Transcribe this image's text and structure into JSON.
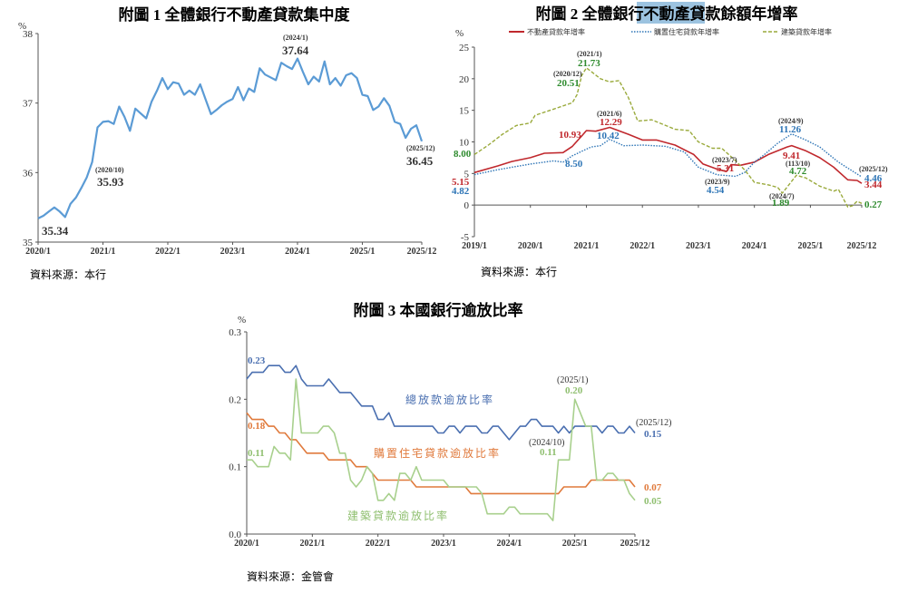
{
  "chart_data": [
    {
      "type": "line",
      "title": "附圖 1  全體銀行不動產貸款集中度",
      "unit": "%",
      "ylim": [
        35,
        38
      ],
      "yticks": [
        "35",
        "36",
        "37",
        "38"
      ],
      "xticks": [
        "2020/1",
        "2021/1",
        "2022/1",
        "2023/1",
        "2024/1",
        "2025/1",
        "2025/12"
      ],
      "source": "資料來源：本行",
      "series": [
        {
          "color": "#5b9bd5",
          "style": "solid",
          "x_start": "2020/1",
          "values": [
            35.34,
            35.38,
            35.44,
            35.5,
            35.44,
            35.36,
            35.55,
            35.64,
            35.78,
            35.93,
            36.15,
            36.65,
            36.73,
            36.74,
            36.7,
            36.95,
            36.8,
            36.6,
            36.92,
            36.85,
            36.78,
            37.02,
            37.18,
            37.36,
            37.2,
            37.3,
            37.28,
            37.12,
            37.18,
            37.12,
            37.27,
            37.05,
            36.84,
            36.9,
            36.97,
            37.02,
            37.06,
            37.23,
            37.04,
            37.21,
            37.16,
            37.5,
            37.41,
            37.37,
            37.33,
            37.58,
            37.53,
            37.49,
            37.64,
            37.45,
            37.27,
            37.38,
            37.31,
            37.6,
            37.27,
            37.36,
            37.25,
            37.4,
            37.43,
            37.36,
            37.12,
            37.1,
            36.9,
            36.95,
            37.07,
            36.96,
            36.73,
            36.7,
            36.5,
            36.63,
            36.68,
            36.45
          ]
        }
      ],
      "annotations": [
        {
          "value": "35.34"
        },
        {
          "date": "(2020/10)",
          "value": "35.93"
        },
        {
          "date": "(2024/1)",
          "value": "37.64"
        },
        {
          "date": "(2025/12)",
          "value": "36.45"
        }
      ]
    },
    {
      "type": "line",
      "title": "附圖 2  全體銀行不動產貸款餘額年增率",
      "unit": "%",
      "ylim": [
        -5,
        25
      ],
      "yticks": [
        "-5",
        "0",
        "5",
        "10",
        "15",
        "20",
        "25"
      ],
      "xticks": [
        "2019/1",
        "2020/1",
        "2021/1",
        "2022/1",
        "2023/1",
        "2024/1",
        "2025/1",
        "2025/12"
      ],
      "source": "資料來源：本行",
      "legend": "top",
      "series": [
        {
          "name": "不動產貸款年增率",
          "color": "#c0282d",
          "style": "solid",
          "points": [
            [
              "2019/1",
              5.15
            ],
            [
              "2019/6",
              6.2
            ],
            [
              "2019/9",
              6.9
            ],
            [
              "2020/1",
              7.5
            ],
            [
              "2020/4",
              8.2
            ],
            [
              "2020/8",
              8.3
            ],
            [
              "2020/10",
              9.3
            ],
            [
              "2020/12",
              10.93
            ],
            [
              "2021/1",
              11.8
            ],
            [
              "2021/3",
              11.7
            ],
            [
              "2021/6",
              12.29
            ],
            [
              "2021/10",
              11.2
            ],
            [
              "2022/1",
              10.3
            ],
            [
              "2022/4",
              10.3
            ],
            [
              "2022/8",
              9.5
            ],
            [
              "2022/12",
              8.0
            ],
            [
              "2023/2",
              6.5
            ],
            [
              "2023/5",
              5.7
            ],
            [
              "2023/7",
              5.31
            ],
            [
              "2023/8",
              6.4
            ],
            [
              "2023/10",
              6.3
            ],
            [
              "2024/1",
              6.8
            ],
            [
              "2024/4",
              8.0
            ],
            [
              "2024/8",
              9.2
            ],
            [
              "2024/9",
              9.41
            ],
            [
              "2024/12",
              8.6
            ],
            [
              "2025/3",
              7.5
            ],
            [
              "2025/6",
              6.0
            ],
            [
              "2025/9",
              4.0
            ],
            [
              "2025/11",
              3.9
            ],
            [
              "2025/12",
              3.44
            ]
          ]
        },
        {
          "name": "購置住宅貸款年增率",
          "color": "#2e75b6",
          "style": "dotted",
          "points": [
            [
              "2019/1",
              4.82
            ],
            [
              "2019/6",
              5.6
            ],
            [
              "2020/1",
              6.5
            ],
            [
              "2020/6",
              7.0
            ],
            [
              "2020/8",
              6.8
            ],
            [
              "2020/10",
              7.8
            ],
            [
              "2020/12",
              8.5
            ],
            [
              "2021/2",
              9.2
            ],
            [
              "2021/4",
              9.4
            ],
            [
              "2021/6",
              10.42
            ],
            [
              "2021/9",
              9.4
            ],
            [
              "2022/1",
              9.5
            ],
            [
              "2022/6",
              9.3
            ],
            [
              "2022/10",
              8.4
            ],
            [
              "2023/1",
              6.0
            ],
            [
              "2023/5",
              4.8
            ],
            [
              "2023/9",
              4.54
            ],
            [
              "2023/11",
              5.2
            ],
            [
              "2024/1",
              6.8
            ],
            [
              "2024/3",
              7.9
            ],
            [
              "2024/6",
              9.8
            ],
            [
              "2024/9",
              11.26
            ],
            [
              "2024/12",
              10.3
            ],
            [
              "2025/3",
              9.2
            ],
            [
              "2025/7",
              6.8
            ],
            [
              "2025/12",
              4.46
            ]
          ]
        },
        {
          "name": "建築貸款年增率",
          "color": "#9aaa3c",
          "style": "dashed",
          "points": [
            [
              "2019/1",
              8.0
            ],
            [
              "2019/4",
              9.5
            ],
            [
              "2019/7",
              11.2
            ],
            [
              "2019/10",
              12.6
            ],
            [
              "2020/1",
              13.0
            ],
            [
              "2020/2",
              14.2
            ],
            [
              "2020/6",
              15.2
            ],
            [
              "2020/10",
              16.2
            ],
            [
              "2020/11",
              17.5
            ],
            [
              "2020/12",
              20.51
            ],
            [
              "2021/1",
              21.73
            ],
            [
              "2021/4",
              20.0
            ],
            [
              "2021/6",
              19.5
            ],
            [
              "2021/8",
              19.7
            ],
            [
              "2021/10",
              17.0
            ],
            [
              "2021/12",
              13.3
            ],
            [
              "2022/3",
              13.5
            ],
            [
              "2022/8",
              12.0
            ],
            [
              "2022/11",
              11.8
            ],
            [
              "2023/1",
              10.0
            ],
            [
              "2023/4",
              9.0
            ],
            [
              "2023/6",
              9.0
            ],
            [
              "2023/9",
              7.0
            ],
            [
              "2023/11",
              5.5
            ],
            [
              "2024/1",
              3.6
            ],
            [
              "2024/4",
              3.2
            ],
            [
              "2024/6",
              2.8
            ],
            [
              "2024/7",
              1.89
            ],
            [
              "2024/10",
              4.72
            ],
            [
              "2024/12",
              4.3
            ],
            [
              "2025/3",
              3.0
            ],
            [
              "2025/6",
              2.2
            ],
            [
              "2025/7",
              2.5
            ],
            [
              "2025/9",
              -0.3
            ],
            [
              "2025/10",
              -0.1
            ],
            [
              "2025/11",
              0.6
            ],
            [
              "2025/12",
              0.27
            ]
          ]
        }
      ],
      "annotations": [
        {
          "value": "5.15",
          "color": "#c0282d"
        },
        {
          "value": "4.82",
          "color": "#2e75b6"
        },
        {
          "value": "8.00",
          "color": "#2e8b2e"
        },
        {
          "date": "(2020/12)",
          "value": "20.51",
          "color": "#2e8b2e"
        },
        {
          "date": "(2021/1)",
          "value": "21.73",
          "color": "#2e8b2e"
        },
        {
          "value": "10.93",
          "color": "#c0282d"
        },
        {
          "date": "(2021/6)",
          "value": "12.29",
          "color": "#c0282d"
        },
        {
          "value": "10.42",
          "color": "#2e75b6"
        },
        {
          "value": "8.50",
          "color": "#2e75b6"
        },
        {
          "date": "(2023/7)",
          "value": "5.31",
          "color": "#c0282d"
        },
        {
          "date": "(2023/9)",
          "value": "4.54",
          "color": "#2e75b6"
        },
        {
          "date": "(2024/9)",
          "value": "11.26",
          "color": "#2e75b6"
        },
        {
          "value": "9.41",
          "color": "#c0282d"
        },
        {
          "date": "(113/10)",
          "value": "4.72",
          "color": "#2e8b2e"
        },
        {
          "date": "(2024/7)",
          "value": "1.89",
          "color": "#2e8b2e"
        },
        {
          "date": "(2025/12)",
          "value": "4.46",
          "color": "#2e75b6"
        },
        {
          "value": "3.44",
          "color": "#c0282d"
        },
        {
          "value": "0.27",
          "color": "#2e8b2e"
        }
      ]
    },
    {
      "type": "line",
      "title": "附圖 3  本國銀行逾放比率",
      "unit": "%",
      "ylim": [
        0,
        0.3
      ],
      "yticks": [
        "0.0",
        "0.1",
        "0.2",
        "0.3"
      ],
      "xticks": [
        "2020/1",
        "2021/1",
        "2022/1",
        "2023/1",
        "2024/1",
        "2025/1",
        "2025/12"
      ],
      "source": "資料來源：金管會",
      "series": [
        {
          "name": "總放款逾放比率",
          "color": "#4a6fb0",
          "style": "solid",
          "x_start": "2020/1",
          "values": [
            0.23,
            0.24,
            0.24,
            0.24,
            0.25,
            0.25,
            0.25,
            0.24,
            0.24,
            0.25,
            0.23,
            0.22,
            0.22,
            0.22,
            0.22,
            0.23,
            0.22,
            0.21,
            0.21,
            0.21,
            0.2,
            0.19,
            0.19,
            0.19,
            0.17,
            0.17,
            0.18,
            0.16,
            0.16,
            0.16,
            0.16,
            0.16,
            0.16,
            0.16,
            0.16,
            0.15,
            0.15,
            0.16,
            0.16,
            0.15,
            0.16,
            0.16,
            0.16,
            0.15,
            0.15,
            0.16,
            0.16,
            0.15,
            0.14,
            0.15,
            0.16,
            0.16,
            0.17,
            0.17,
            0.16,
            0.16,
            0.16,
            0.15,
            0.16,
            0.15,
            0.16,
            0.16,
            0.16,
            0.16,
            0.16,
            0.15,
            0.16,
            0.16,
            0.15,
            0.15,
            0.16,
            0.15
          ]
        },
        {
          "name": "購置住宅貸款逾放比率",
          "color": "#e07a3c",
          "style": "solid",
          "x_start": "2020/1",
          "values": [
            0.18,
            0.17,
            0.17,
            0.17,
            0.16,
            0.16,
            0.15,
            0.15,
            0.14,
            0.14,
            0.13,
            0.12,
            0.12,
            0.12,
            0.12,
            0.11,
            0.11,
            0.11,
            0.11,
            0.11,
            0.1,
            0.1,
            0.1,
            0.09,
            0.08,
            0.08,
            0.08,
            0.08,
            0.08,
            0.08,
            0.08,
            0.07,
            0.07,
            0.07,
            0.07,
            0.07,
            0.07,
            0.07,
            0.07,
            0.07,
            0.07,
            0.06,
            0.06,
            0.06,
            0.06,
            0.06,
            0.06,
            0.06,
            0.06,
            0.06,
            0.06,
            0.06,
            0.06,
            0.06,
            0.06,
            0.06,
            0.06,
            0.06,
            0.07,
            0.07,
            0.07,
            0.07,
            0.07,
            0.08,
            0.08,
            0.08,
            0.08,
            0.08,
            0.08,
            0.08,
            0.08,
            0.07
          ]
        },
        {
          "name": "建築貸款逾放比率",
          "color": "#a8d08d",
          "style": "solid",
          "x_start": "2020/1",
          "values": [
            0.11,
            0.11,
            0.1,
            0.1,
            0.1,
            0.13,
            0.12,
            0.12,
            0.11,
            0.23,
            0.15,
            0.15,
            0.15,
            0.15,
            0.16,
            0.16,
            0.15,
            0.12,
            0.12,
            0.08,
            0.07,
            0.08,
            0.1,
            0.09,
            0.05,
            0.05,
            0.06,
            0.05,
            0.09,
            0.09,
            0.08,
            0.1,
            0.08,
            0.08,
            0.08,
            0.08,
            0.08,
            0.07,
            0.07,
            0.07,
            0.07,
            0.07,
            0.07,
            0.06,
            0.03,
            0.03,
            0.03,
            0.03,
            0.04,
            0.04,
            0.03,
            0.03,
            0.03,
            0.03,
            0.03,
            0.03,
            0.02,
            0.11,
            0.11,
            0.11,
            0.2,
            0.18,
            0.16,
            0.16,
            0.08,
            0.08,
            0.09,
            0.09,
            0.08,
            0.08,
            0.06,
            0.05
          ]
        }
      ],
      "annotations": [
        {
          "value": "0.23",
          "color": "#4a6fb0"
        },
        {
          "value": "0.18",
          "color": "#e07a3c"
        },
        {
          "value": "0.11",
          "color": "#8fbf6f"
        },
        {
          "date": "(2025/1)",
          "value": "0.20",
          "color": "#8fbf6f"
        },
        {
          "date": "(2024/10)",
          "value": "0.11",
          "color": "#8fbf6f"
        },
        {
          "date": "(2025/12)",
          "value": "0.15",
          "color": "#4a6fb0"
        },
        {
          "value": "0.07",
          "color": "#e07a3c"
        },
        {
          "value": "0.05",
          "color": "#8fbf6f"
        }
      ]
    }
  ]
}
